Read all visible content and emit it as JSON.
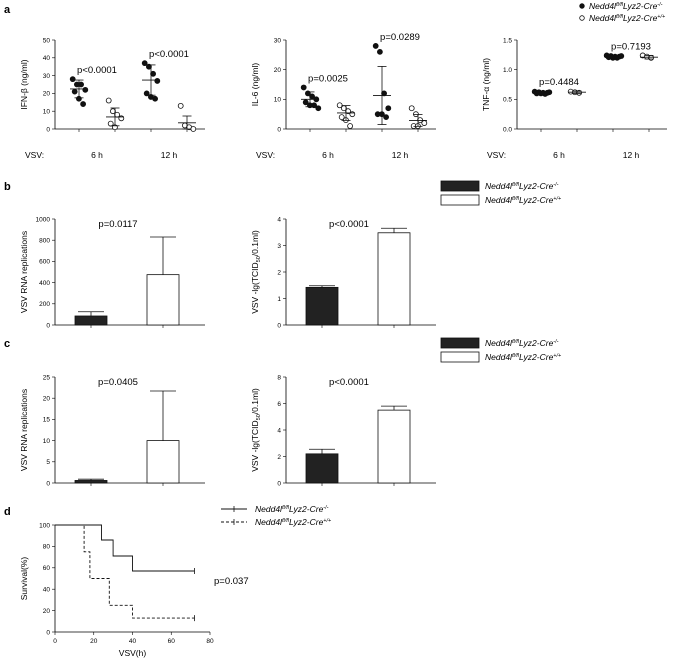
{
  "panel_labels": [
    "a",
    "b",
    "c",
    "d"
  ],
  "legend_a": {
    "items": [
      {
        "base": "Nedd4l",
        "sup": "fl/fl",
        "mid": "Lyz2-Cre",
        "sup2": "-/-",
        "marker": "filled-circle"
      },
      {
        "base": "Nedd4l",
        "sup": "fl/fl",
        "mid": "Lyz2-Cre",
        "sup2": "+/+",
        "marker": "open-circle"
      }
    ]
  },
  "legend_bc": {
    "items": [
      {
        "base": "Nedd4l",
        "sup": "fl/fl",
        "mid": "Lyz2-Cre",
        "sup2": "-/-",
        "marker": "filled-box"
      },
      {
        "base": "Nedd4l",
        "sup": "fl/fl",
        "mid": "Lyz2-Cre",
        "sup2": "+/+",
        "marker": "open-box"
      }
    ]
  },
  "legend_d": {
    "items": [
      {
        "base": "Nedd4l",
        "sup": "fl/fl",
        "mid": "Lyz2-Cre",
        "sup2": "-/-",
        "marker": "solid-line"
      },
      {
        "base": "Nedd4l",
        "sup": "fl/fl",
        "mid": "Lyz2-Cre",
        "sup2": "+/+",
        "marker": "dashed-line"
      }
    ]
  },
  "chart_data": [
    {
      "id": "a1",
      "type": "scatter",
      "panel": "a",
      "ylabel": "IFN-β (ng/ml)",
      "ylim": [
        0,
        50
      ],
      "yticks": [
        0,
        10,
        20,
        30,
        40,
        50
      ],
      "xprefix": "VSV:",
      "groups": [
        "6 h",
        "12 h"
      ],
      "series": [
        {
          "name": "Nedd4l fl/fl Lyz2-Cre-/-",
          "filled": true,
          "points": [
            [
              28,
              25,
              25,
              22,
              21,
              17,
              14
            ],
            [
              37,
              35,
              31,
              27,
              20,
              18,
              17
            ]
          ],
          "mean": [
            22.5,
            27.5
          ],
          "sd": [
            5,
            8.5
          ]
        },
        {
          "name": "Nedd4l fl/fl Lyz2-Cre+/+",
          "filled": false,
          "points": [
            [
              16,
              10,
              8,
              6,
              3,
              1
            ],
            [
              13,
              2,
              1,
              0
            ]
          ],
          "mean": [
            6.8,
            3.5
          ],
          "sd": [
            5,
            3.8
          ]
        }
      ],
      "pvalues": [
        "p<0.0001",
        "p<0.0001"
      ]
    },
    {
      "id": "a2",
      "type": "scatter",
      "panel": "a",
      "ylabel": "IL-6 (ng/ml)",
      "ylim": [
        0,
        30
      ],
      "yticks": [
        0,
        10,
        20,
        30
      ],
      "xprefix": "VSV:",
      "groups": [
        "6 h",
        "12 h"
      ],
      "series": [
        {
          "name": "Nedd4l fl/fl Lyz2-Cre-/-",
          "filled": true,
          "points": [
            [
              14,
              12,
              11,
              10,
              9,
              8,
              8,
              7
            ],
            [
              28,
              26,
              12,
              7,
              5,
              5,
              4
            ]
          ],
          "mean": [
            10,
            11.3
          ],
          "sd": [
            2.5,
            9.8
          ]
        },
        {
          "name": "Nedd4l fl/fl Lyz2-Cre+/+",
          "filled": false,
          "points": [
            [
              8,
              7,
              6,
              5,
              4,
              3,
              1
            ],
            [
              7,
              5,
              3,
              2,
              1,
              1
            ]
          ],
          "mean": [
            5.4,
            2.9
          ],
          "sd": [
            2.5,
            2
          ]
        }
      ],
      "pvalues": [
        "p=0.0025",
        "p=0.0289"
      ]
    },
    {
      "id": "a3",
      "type": "scatter",
      "panel": "a",
      "ylabel": "TNF-α (ng/ml)",
      "ylim": [
        0,
        1.5
      ],
      "yticks": [
        0.0,
        0.5,
        1.0,
        1.5
      ],
      "xprefix": "VSV:",
      "groups": [
        "6 h",
        "12 h"
      ],
      "series": [
        {
          "name": "Nedd4l fl/fl Lyz2-Cre-/-",
          "filled": true,
          "points": [
            [
              0.63,
              0.62,
              0.61,
              0.61,
              0.6,
              0.6,
              0.59,
              0.62
            ],
            [
              1.24,
              1.23,
              1.22,
              1.22,
              1.21,
              1.2,
              1.2,
              1.23
            ]
          ],
          "mean": [
            0.61,
            1.22
          ],
          "sd": [
            0.015,
            0.02
          ]
        },
        {
          "name": "Nedd4l fl/fl Lyz2-Cre+/+",
          "filled": false,
          "points": [
            [
              0.63,
              0.62,
              0.61
            ],
            [
              1.24,
              1.22,
              1.2
            ]
          ],
          "mean": [
            0.62,
            1.21
          ],
          "sd": [
            0.02,
            0.03
          ]
        }
      ],
      "pvalues": [
        "p=0.4484",
        "p=0.7193"
      ]
    },
    {
      "id": "b1",
      "type": "bar",
      "panel": "b",
      "ylabel": "VSV RNA replications",
      "ylim": [
        0,
        1000
      ],
      "yticks": [
        0,
        200,
        400,
        600,
        800,
        1000
      ],
      "values": [
        85,
        475
      ],
      "errors": [
        40,
        355
      ],
      "fills": [
        "#222222",
        "#ffffff"
      ],
      "pvalue": "p=0.0117"
    },
    {
      "id": "b2",
      "type": "bar",
      "panel": "b",
      "ylabel_parts": [
        "VSV -lg(TCID",
        "50",
        "/0.1ml)"
      ],
      "ylim": [
        0,
        4
      ],
      "yticks": [
        0,
        1,
        2,
        3,
        4
      ],
      "values": [
        1.42,
        3.48
      ],
      "errors": [
        0.06,
        0.17
      ],
      "fills": [
        "#222222",
        "#ffffff"
      ],
      "pvalue": "p<0.0001"
    },
    {
      "id": "c1",
      "type": "bar",
      "panel": "c",
      "ylabel": "VSV RNA replications",
      "ylim": [
        0,
        25
      ],
      "yticks": [
        0,
        5,
        10,
        15,
        20,
        25
      ],
      "values": [
        0.6,
        10
      ],
      "errors": [
        0.3,
        11.7
      ],
      "fills": [
        "#222222",
        "#ffffff"
      ],
      "pvalue": "p=0.0405"
    },
    {
      "id": "c2",
      "type": "bar",
      "panel": "c",
      "ylabel_parts": [
        "VSV -lg(TCID",
        "50",
        "/0.1ml)"
      ],
      "ylim": [
        0,
        8
      ],
      "yticks": [
        0,
        2,
        4,
        6,
        8
      ],
      "values": [
        2.2,
        5.5
      ],
      "errors": [
        0.35,
        0.3
      ],
      "fills": [
        "#222222",
        "#ffffff"
      ],
      "pvalue": "p<0.0001"
    },
    {
      "id": "d1",
      "type": "line",
      "panel": "d",
      "ylabel": "Survival(%)",
      "xlabel": "VSV(h)",
      "xlim": [
        0,
        80
      ],
      "ylim": [
        0,
        100
      ],
      "xticks": [
        0,
        20,
        40,
        60,
        80
      ],
      "yticks": [
        0,
        20,
        40,
        60,
        80,
        100
      ],
      "series": [
        {
          "name": "Nedd4l fl/fl Lyz2-Cre-/-",
          "dash": false,
          "steps": [
            [
              0,
              100
            ],
            [
              24,
              100
            ],
            [
              24,
              86
            ],
            [
              30,
              86
            ],
            [
              30,
              71
            ],
            [
              40,
              71
            ],
            [
              40,
              57
            ],
            [
              72,
              57
            ]
          ]
        },
        {
          "name": "Nedd4l fl/fl Lyz2-Cre+/+",
          "dash": true,
          "steps": [
            [
              0,
              100
            ],
            [
              15,
              100
            ],
            [
              15,
              75
            ],
            [
              18,
              75
            ],
            [
              18,
              50
            ],
            [
              28,
              50
            ],
            [
              28,
              25
            ],
            [
              40,
              25
            ],
            [
              40,
              13
            ],
            [
              72,
              13
            ]
          ]
        }
      ],
      "pvalue": "p=0.037"
    }
  ]
}
